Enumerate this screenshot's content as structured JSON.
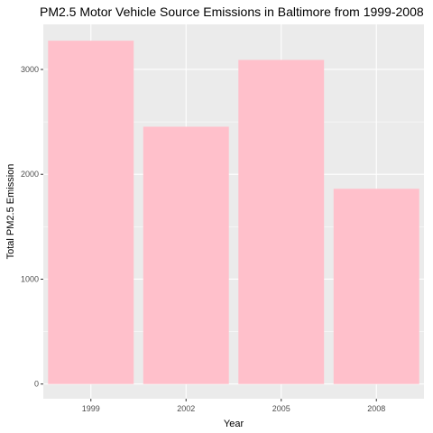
{
  "chart_data": {
    "type": "bar",
    "title": "PM2.5 Motor Vehicle Source Emissions in Baltimore from 1999-2008",
    "xlabel": "Year",
    "ylabel": "Total PM2.5 Emission",
    "categories": [
      "1999",
      "2002",
      "2005",
      "2008"
    ],
    "values": [
      3274,
      2454,
      3091,
      1862
    ],
    "ylim": [
      -140,
      3430
    ],
    "yticks": [
      0,
      1000,
      2000,
      3000
    ],
    "grid": true,
    "colors": {
      "bar": "#ffc0cb",
      "panel": "#ebebeb",
      "grid_major": "#ffffff"
    }
  }
}
